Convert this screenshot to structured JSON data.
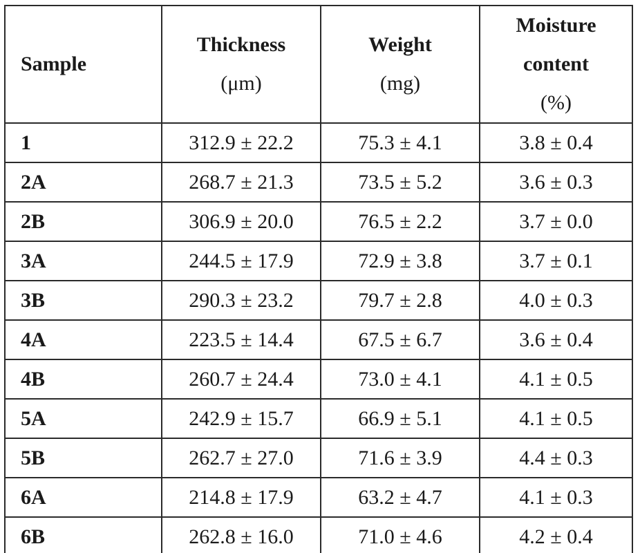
{
  "table": {
    "headers": {
      "sample": "Sample",
      "thickness": {
        "label": "Thickness",
        "unit": "(μm)"
      },
      "weight": {
        "label": "Weight",
        "unit": "(mg)"
      },
      "moisture": {
        "label_line1": "Moisture",
        "label_line2": "content",
        "unit": "(%)"
      }
    },
    "rows": [
      {
        "sample": "1",
        "thickness": "312.9 ± 22.2",
        "weight": "75.3 ± 4.1",
        "moisture": "3.8 ± 0.4"
      },
      {
        "sample": "2A",
        "thickness": "268.7 ± 21.3",
        "weight": "73.5 ± 5.2",
        "moisture": "3.6 ± 0.3"
      },
      {
        "sample": "2B",
        "thickness": "306.9 ± 20.0",
        "weight": "76.5 ± 2.2",
        "moisture": "3.7 ± 0.0"
      },
      {
        "sample": "3A",
        "thickness": "244.5 ± 17.9",
        "weight": "72.9 ± 3.8",
        "moisture": "3.7 ± 0.1"
      },
      {
        "sample": "3B",
        "thickness": "290.3 ± 23.2",
        "weight": "79.7 ± 2.8",
        "moisture": "4.0 ± 0.3"
      },
      {
        "sample": "4A",
        "thickness": "223.5 ± 14.4",
        "weight": "67.5 ± 6.7",
        "moisture": "3.6 ± 0.4"
      },
      {
        "sample": "4B",
        "thickness": "260.7 ± 24.4",
        "weight": "73.0 ± 4.1",
        "moisture": "4.1 ± 0.5"
      },
      {
        "sample": "5A",
        "thickness": "242.9 ± 15.7",
        "weight": "66.9 ± 5.1",
        "moisture": "4.1 ± 0.5"
      },
      {
        "sample": "5B",
        "thickness": "262.7 ± 27.0",
        "weight": "71.6 ± 3.9",
        "moisture": "4.4 ± 0.3"
      },
      {
        "sample": "6A",
        "thickness": "214.8 ± 17.9",
        "weight": "63.2 ± 4.7",
        "moisture": "4.1 ± 0.3"
      },
      {
        "sample": "6B",
        "thickness": "262.8 ± 16.0",
        "weight": "71.0 ± 4.6",
        "moisture": "4.2 ± 0.4"
      }
    ]
  }
}
